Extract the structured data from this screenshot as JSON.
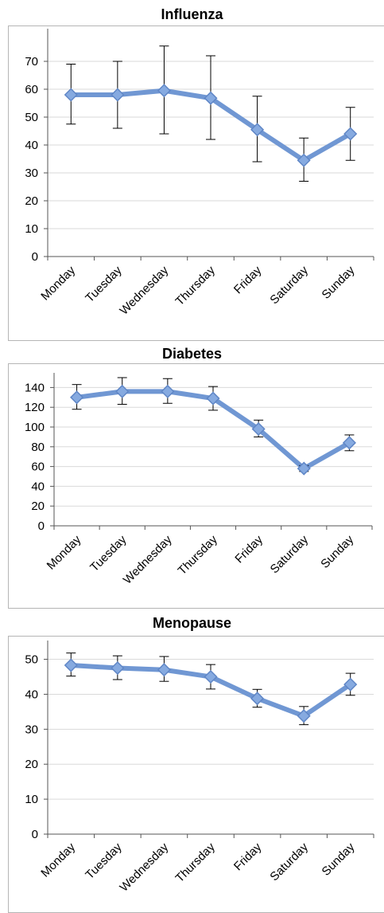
{
  "chart_data": [
    {
      "type": "line",
      "title": "Influenza",
      "categories": [
        "Monday",
        "Tuesday",
        "Wednesday",
        "Thursday",
        "Friday",
        "Saturday",
        "Sunday"
      ],
      "ylim": [
        0,
        80
      ],
      "yticks": [
        0,
        10,
        20,
        30,
        40,
        50,
        60,
        70
      ],
      "grid": true,
      "series": [
        {
          "values": [
            58,
            58,
            59.5,
            56.8,
            45.5,
            34.5,
            44
          ],
          "err_low": [
            47.5,
            46,
            44,
            42,
            34,
            27,
            34.5
          ],
          "err_high": [
            69,
            70,
            75.5,
            72,
            57.5,
            42.5,
            53.5
          ]
        }
      ],
      "color": "#7097d3"
    },
    {
      "type": "line",
      "title": "Diabetes",
      "categories": [
        "Monday",
        "Tuesday",
        "Wednesday",
        "Thursday",
        "Friday",
        "Saturday",
        "Sunday"
      ],
      "ylim": [
        0,
        150
      ],
      "yticks": [
        0,
        20,
        40,
        60,
        80,
        100,
        120,
        140
      ],
      "grid": true,
      "series": [
        {
          "values": [
            130,
            136,
            136,
            129,
            98,
            58,
            84
          ],
          "err_low": [
            118,
            123,
            124,
            117,
            90,
            55,
            76
          ],
          "err_high": [
            143,
            150,
            149,
            141,
            107,
            61,
            92
          ]
        }
      ],
      "color": "#7097d3"
    },
    {
      "type": "line",
      "title": "Menopause",
      "categories": [
        "Monday",
        "Tuesday",
        "Wednesday",
        "Thursday",
        "Friday",
        "Saturday",
        "Sunday"
      ],
      "ylim": [
        0,
        54
      ],
      "yticks": [
        0,
        10,
        20,
        30,
        40,
        50
      ],
      "grid": true,
      "series": [
        {
          "values": [
            48.3,
            47.5,
            47,
            45,
            38.8,
            33.8,
            42.8
          ],
          "err_low": [
            45.2,
            44.2,
            43.7,
            41.5,
            36.3,
            31.3,
            39.7
          ],
          "err_high": [
            51.8,
            51,
            50.8,
            48.5,
            41.4,
            36.5,
            46
          ]
        }
      ],
      "color": "#7097d3"
    }
  ]
}
